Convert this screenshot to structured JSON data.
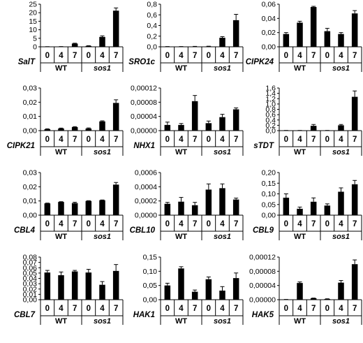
{
  "chart_data": [
    {
      "type": "bar",
      "gene": "SalT",
      "yticks": [
        "0",
        "5",
        "10",
        "15",
        "20",
        "25"
      ],
      "ylim": [
        0,
        25
      ],
      "categories": [
        "WT 0",
        "WT 4",
        "WT 7",
        "sos1 0",
        "sos1 4",
        "sos1 7"
      ],
      "values": [
        0.05,
        0.1,
        1.9,
        0.5,
        5.8,
        21.2
      ],
      "errors": [
        0.05,
        0.05,
        0.2,
        0.15,
        0.6,
        1.6
      ]
    },
    {
      "type": "bar",
      "gene": "SRO1c",
      "yticks": [
        "0,0",
        "0,2",
        "0,4",
        "0,6",
        "0,8"
      ],
      "ylim": [
        0,
        0.8
      ],
      "categories": [
        "WT 0",
        "WT 4",
        "WT 7",
        "sos1 0",
        "sos1 4",
        "sos1 7"
      ],
      "values": [
        0.003,
        0.003,
        0.005,
        0.008,
        0.17,
        0.5
      ],
      "errors": [
        0.002,
        0.002,
        0.003,
        0.003,
        0.02,
        0.11
      ]
    },
    {
      "type": "bar",
      "gene": "CIPK24",
      "yticks": [
        "0,00",
        "0,02",
        "0,04",
        "0,06"
      ],
      "ylim": [
        0,
        0.06
      ],
      "categories": [
        "WT 0",
        "WT 4",
        "WT 7",
        "sos1 0",
        "sos1 4",
        "sos1 7"
      ],
      "values": [
        0.018,
        0.034,
        0.056,
        0.022,
        0.018,
        0.047
      ],
      "errors": [
        0.002,
        0.002,
        0.001,
        0.004,
        0.002,
        0.004
      ]
    },
    {
      "type": "bar",
      "gene": "CIPK21",
      "yticks": [
        "0,00",
        "0,01",
        "0,02",
        "0,03"
      ],
      "ylim": [
        0,
        0.03
      ],
      "categories": [
        "WT 0",
        "WT 4",
        "WT 7",
        "sos1 0",
        "sos1 4",
        "sos1 7"
      ],
      "values": [
        0.001,
        0.0015,
        0.0025,
        0.0015,
        0.0065,
        0.0195
      ],
      "errors": [
        0.0003,
        0.0003,
        0.0003,
        0.0004,
        0.0004,
        0.0022
      ]
    },
    {
      "type": "bar",
      "gene": "NHX1",
      "yticks": [
        "0,00000",
        "0,00004",
        "0,00008",
        "0,00012"
      ],
      "ylim": [
        0,
        0.00012
      ],
      "categories": [
        "WT 0",
        "WT 4",
        "WT 7",
        "sos1 0",
        "sos1 4",
        "sos1 7"
      ],
      "values": [
        1.6e-05,
        1.6e-05,
        8.3e-05,
        2.1e-05,
        3.8e-05,
        6e-05
      ],
      "errors": [
        8e-06,
        4e-06,
        1.6e-05,
        6e-06,
        8e-06,
        4e-06
      ]
    },
    {
      "type": "bar",
      "gene": "sTDT",
      "yticks": [
        "0,0",
        "0,2",
        "0,4",
        "0,6",
        "0,8",
        "1,0",
        "1,2",
        "1,4",
        "1,6"
      ],
      "ylim": [
        0,
        1.6
      ],
      "categories": [
        "WT 0",
        "WT 4",
        "WT 7",
        "sos1 0",
        "sos1 4",
        "sos1 7"
      ],
      "values": [
        0.005,
        0.005,
        0.18,
        0.005,
        0.2,
        1.27
      ],
      "errors": [
        0.003,
        0.003,
        0.05,
        0.003,
        0.03,
        0.22
      ]
    },
    {
      "type": "bar",
      "gene": "CBL4",
      "yticks": [
        "0,00",
        "0,01",
        "0,02",
        "0,03"
      ],
      "ylim": [
        0,
        0.03
      ],
      "categories": [
        "WT 0",
        "WT 4",
        "WT 7",
        "sos1 0",
        "sos1 4",
        "sos1 7"
      ],
      "values": [
        0.0083,
        0.0093,
        0.0085,
        0.01,
        0.0105,
        0.0215
      ],
      "errors": [
        0.0002,
        0.0002,
        0.0006,
        0.0002,
        0.0002,
        0.0015
      ]
    },
    {
      "type": "bar",
      "gene": "CBL10",
      "yticks": [
        "0,0000",
        "0,0002",
        "0,0004",
        "0,0006"
      ],
      "ylim": [
        0,
        0.0006
      ],
      "categories": [
        "WT 0",
        "WT 4",
        "WT 7",
        "sos1 0",
        "sos1 4",
        "sos1 7"
      ],
      "values": [
        0.00016,
        0.00019,
        0.00014,
        0.00036,
        0.00038,
        0.00022
      ],
      "errors": [
        2e-05,
        6e-05,
        4e-05,
        8e-05,
        6e-05,
        2e-05
      ]
    },
    {
      "type": "bar",
      "gene": "CBL9",
      "yticks": [
        "0,00",
        "0,05",
        "0,10",
        "0,15",
        "0,20"
      ],
      "ylim": [
        0,
        0.2
      ],
      "categories": [
        "WT 0",
        "WT 4",
        "WT 7",
        "sos1 0",
        "sos1 4",
        "sos1 7"
      ],
      "values": [
        0.082,
        0.03,
        0.063,
        0.045,
        0.11,
        0.145
      ],
      "errors": [
        0.018,
        0.008,
        0.018,
        0.008,
        0.018,
        0.018
      ]
    },
    {
      "type": "bar",
      "gene": "CBL7",
      "yticks": [
        "0,00",
        "0,01",
        "0,02",
        "0,03",
        "0,04",
        "0,05",
        "0,06",
        "0,07",
        "0,08"
      ],
      "ylim": [
        0,
        0.08
      ],
      "categories": [
        "WT 0",
        "WT 4",
        "WT 7",
        "sos1 0",
        "sos1 4",
        "sos1 7"
      ],
      "values": [
        0.051,
        0.046,
        0.053,
        0.051,
        0.028,
        0.054
      ],
      "errors": [
        0.004,
        0.006,
        0.002,
        0.006,
        0.006,
        0.012
      ]
    },
    {
      "type": "bar",
      "gene": "HAK1",
      "yticks": [
        "0,00",
        "0,05",
        "0,10",
        "0,15"
      ],
      "ylim": [
        0,
        0.15
      ],
      "categories": [
        "WT 0",
        "WT 4",
        "WT 7",
        "sos1 0",
        "sos1 4",
        "sos1 7"
      ],
      "values": [
        0.05,
        0.11,
        0.028,
        0.072,
        0.032,
        0.076
      ],
      "errors": [
        0.008,
        0.006,
        0.006,
        0.008,
        0.014,
        0.018
      ]
    },
    {
      "type": "bar",
      "gene": "HAK5",
      "yticks": [
        "0,00000",
        "0,00004",
        "0,00008",
        "0,00012"
      ],
      "ylim": [
        0,
        0.00012
      ],
      "categories": [
        "WT 0",
        "WT 4",
        "WT 7",
        "sos1 0",
        "sos1 4",
        "sos1 7"
      ],
      "values": [
        5e-07,
        4.7e-05,
        4e-06,
        2e-06,
        4.8e-05,
        0.0001
      ],
      "errors": [
        3e-07,
        3e-06,
        5e-07,
        5e-07,
        6e-06,
        1.2e-05
      ]
    }
  ],
  "time_labels": [
    "0",
    "4",
    "7"
  ],
  "group_labels": [
    "WT",
    "sos1"
  ]
}
